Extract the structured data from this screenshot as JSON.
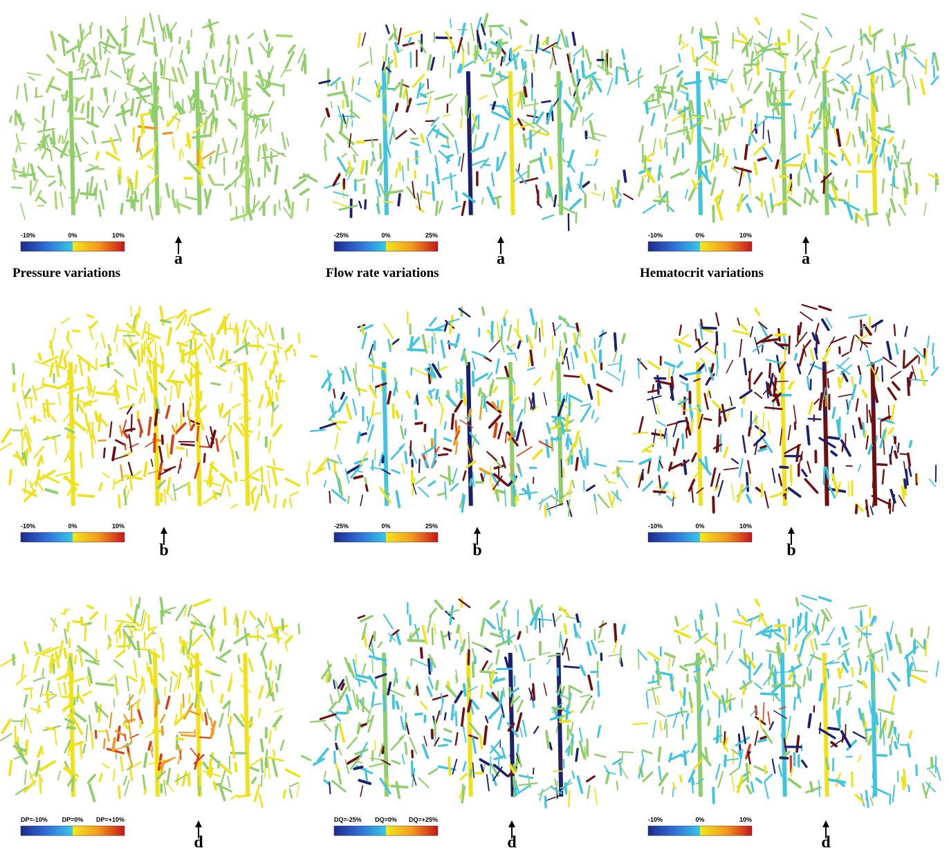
{
  "rows": [
    {
      "panels": [
        {
          "scale": [
            "-10%",
            "0%",
            "10%"
          ],
          "letter": "a",
          "caption": "Pressure variations"
        },
        {
          "scale": [
            "-25%",
            "0%",
            "25%"
          ],
          "letter": "a",
          "caption": "Flow rate variations"
        },
        {
          "scale": [
            "-10%",
            "0%",
            "10%"
          ],
          "letter": "a",
          "caption": "Hematocrit variations"
        }
      ]
    },
    {
      "panels": [
        {
          "scale": [
            "-10%",
            "0%",
            "10%"
          ],
          "letter": "b"
        },
        {
          "scale": [
            "-25%",
            "0%",
            "25%"
          ],
          "letter": "b"
        },
        {
          "scale": [
            "-10%",
            "0%",
            "10%"
          ],
          "letter": "b"
        }
      ]
    },
    {
      "panels": [
        {
          "scale": [
            "DP=-10%",
            "DP=0%",
            "DP=+10%"
          ],
          "letter": "d"
        },
        {
          "scale": [
            "DQ=-25%",
            "DQ=0%",
            "DQ=+25%"
          ],
          "letter": "d"
        },
        {
          "scale": [
            "-10%",
            "0%",
            "10%"
          ],
          "letter": "d"
        }
      ]
    }
  ]
}
